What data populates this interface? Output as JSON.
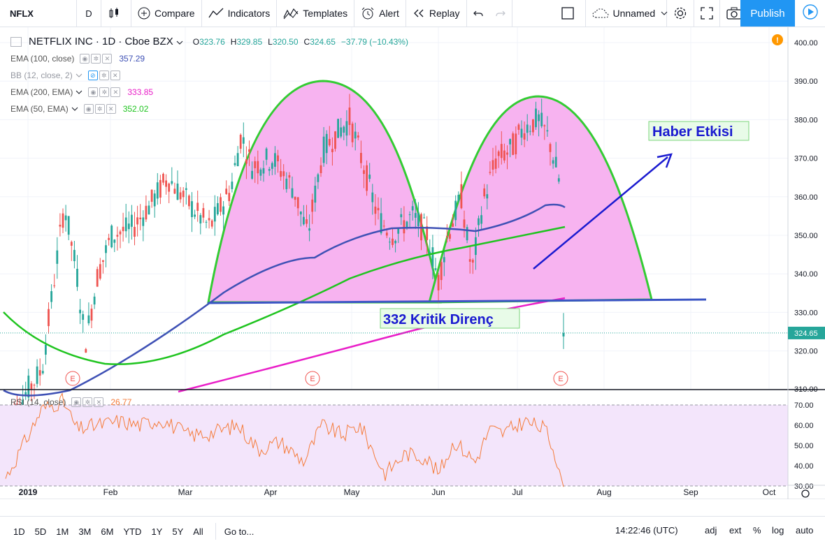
{
  "toolbar": {
    "symbol": "NFLX",
    "interval": "D",
    "compare": "Compare",
    "indicators": "Indicators",
    "templates": "Templates",
    "alert": "Alert",
    "replay": "Replay",
    "layout_name": "Unnamed",
    "publish": "Publish"
  },
  "legend": {
    "title": "NETFLIX INC · 1D · Cboe BZX",
    "o_label": "O",
    "o": "323.76",
    "h_label": "H",
    "h": "329.85",
    "l_label": "L",
    "l": "320.50",
    "c_label": "C",
    "c": "324.65",
    "change": "−37.79 (−10.43%)",
    "indicators": [
      {
        "name": "EMA (100, close)",
        "value": "357.29",
        "color": "#3f51b5"
      },
      {
        "name": "BB (12, close, 2)",
        "value": "",
        "color": "#9598a1"
      },
      {
        "name": "EMA (200, EMA)",
        "value": "333.85",
        "color": "#e91ec8"
      },
      {
        "name": "EMA (50, EMA)",
        "value": "352.02",
        "color": "#1fc41f"
      }
    ],
    "rsi_name": "RSI (14, close)",
    "rsi_value": "26.77"
  },
  "price_axis": {
    "labels": [
      "400.00",
      "390.00",
      "380.00",
      "370.00",
      "360.00",
      "350.00",
      "340.00",
      "330.00",
      "320.00",
      "310.00"
    ],
    "last_price": "324.65"
  },
  "rsi_axis": {
    "labels": [
      "70.00",
      "60.00",
      "50.00",
      "40.00",
      "30.00"
    ]
  },
  "time_axis": {
    "labels": [
      "2019",
      "Feb",
      "Mar",
      "Apr",
      "May",
      "Jun",
      "Jul",
      "Aug",
      "Sep",
      "Oct"
    ]
  },
  "annotations": {
    "resistance_label": "332 Kritik Direnç",
    "news_label": "Haber Etkisi",
    "earnings_marker": "E"
  },
  "bottombar": {
    "ranges": [
      "1D",
      "5D",
      "1M",
      "3M",
      "6M",
      "YTD",
      "1Y",
      "5Y",
      "All"
    ],
    "goto": "Go to...",
    "clock": "14:22:46 (UTC)",
    "adj": "adj",
    "ext": "ext",
    "percent": "%",
    "log": "log",
    "auto": "auto"
  },
  "colors": {
    "up": "#26a69a",
    "down": "#ef5350",
    "accent": "#2196f3",
    "ema100": "#3f51b5",
    "ema200": "#e91ec8",
    "ema50": "#1fc41f",
    "dome_fill": "#f7b3f0",
    "dome_stroke": "#33cc33",
    "rsi": "#f57c3b",
    "rsi_band": "#f3e5fb"
  },
  "chart_data": {
    "type": "candlestick",
    "symbol": "NFLX",
    "price_range": [
      308,
      404
    ],
    "rsi_range": [
      25,
      75
    ],
    "last_close": 324.65,
    "ema100_last": 357.29,
    "ema200_last": 333.85,
    "ema50_last": 352.02,
    "rsi_last": 26.77,
    "resistance_level": 332
  }
}
